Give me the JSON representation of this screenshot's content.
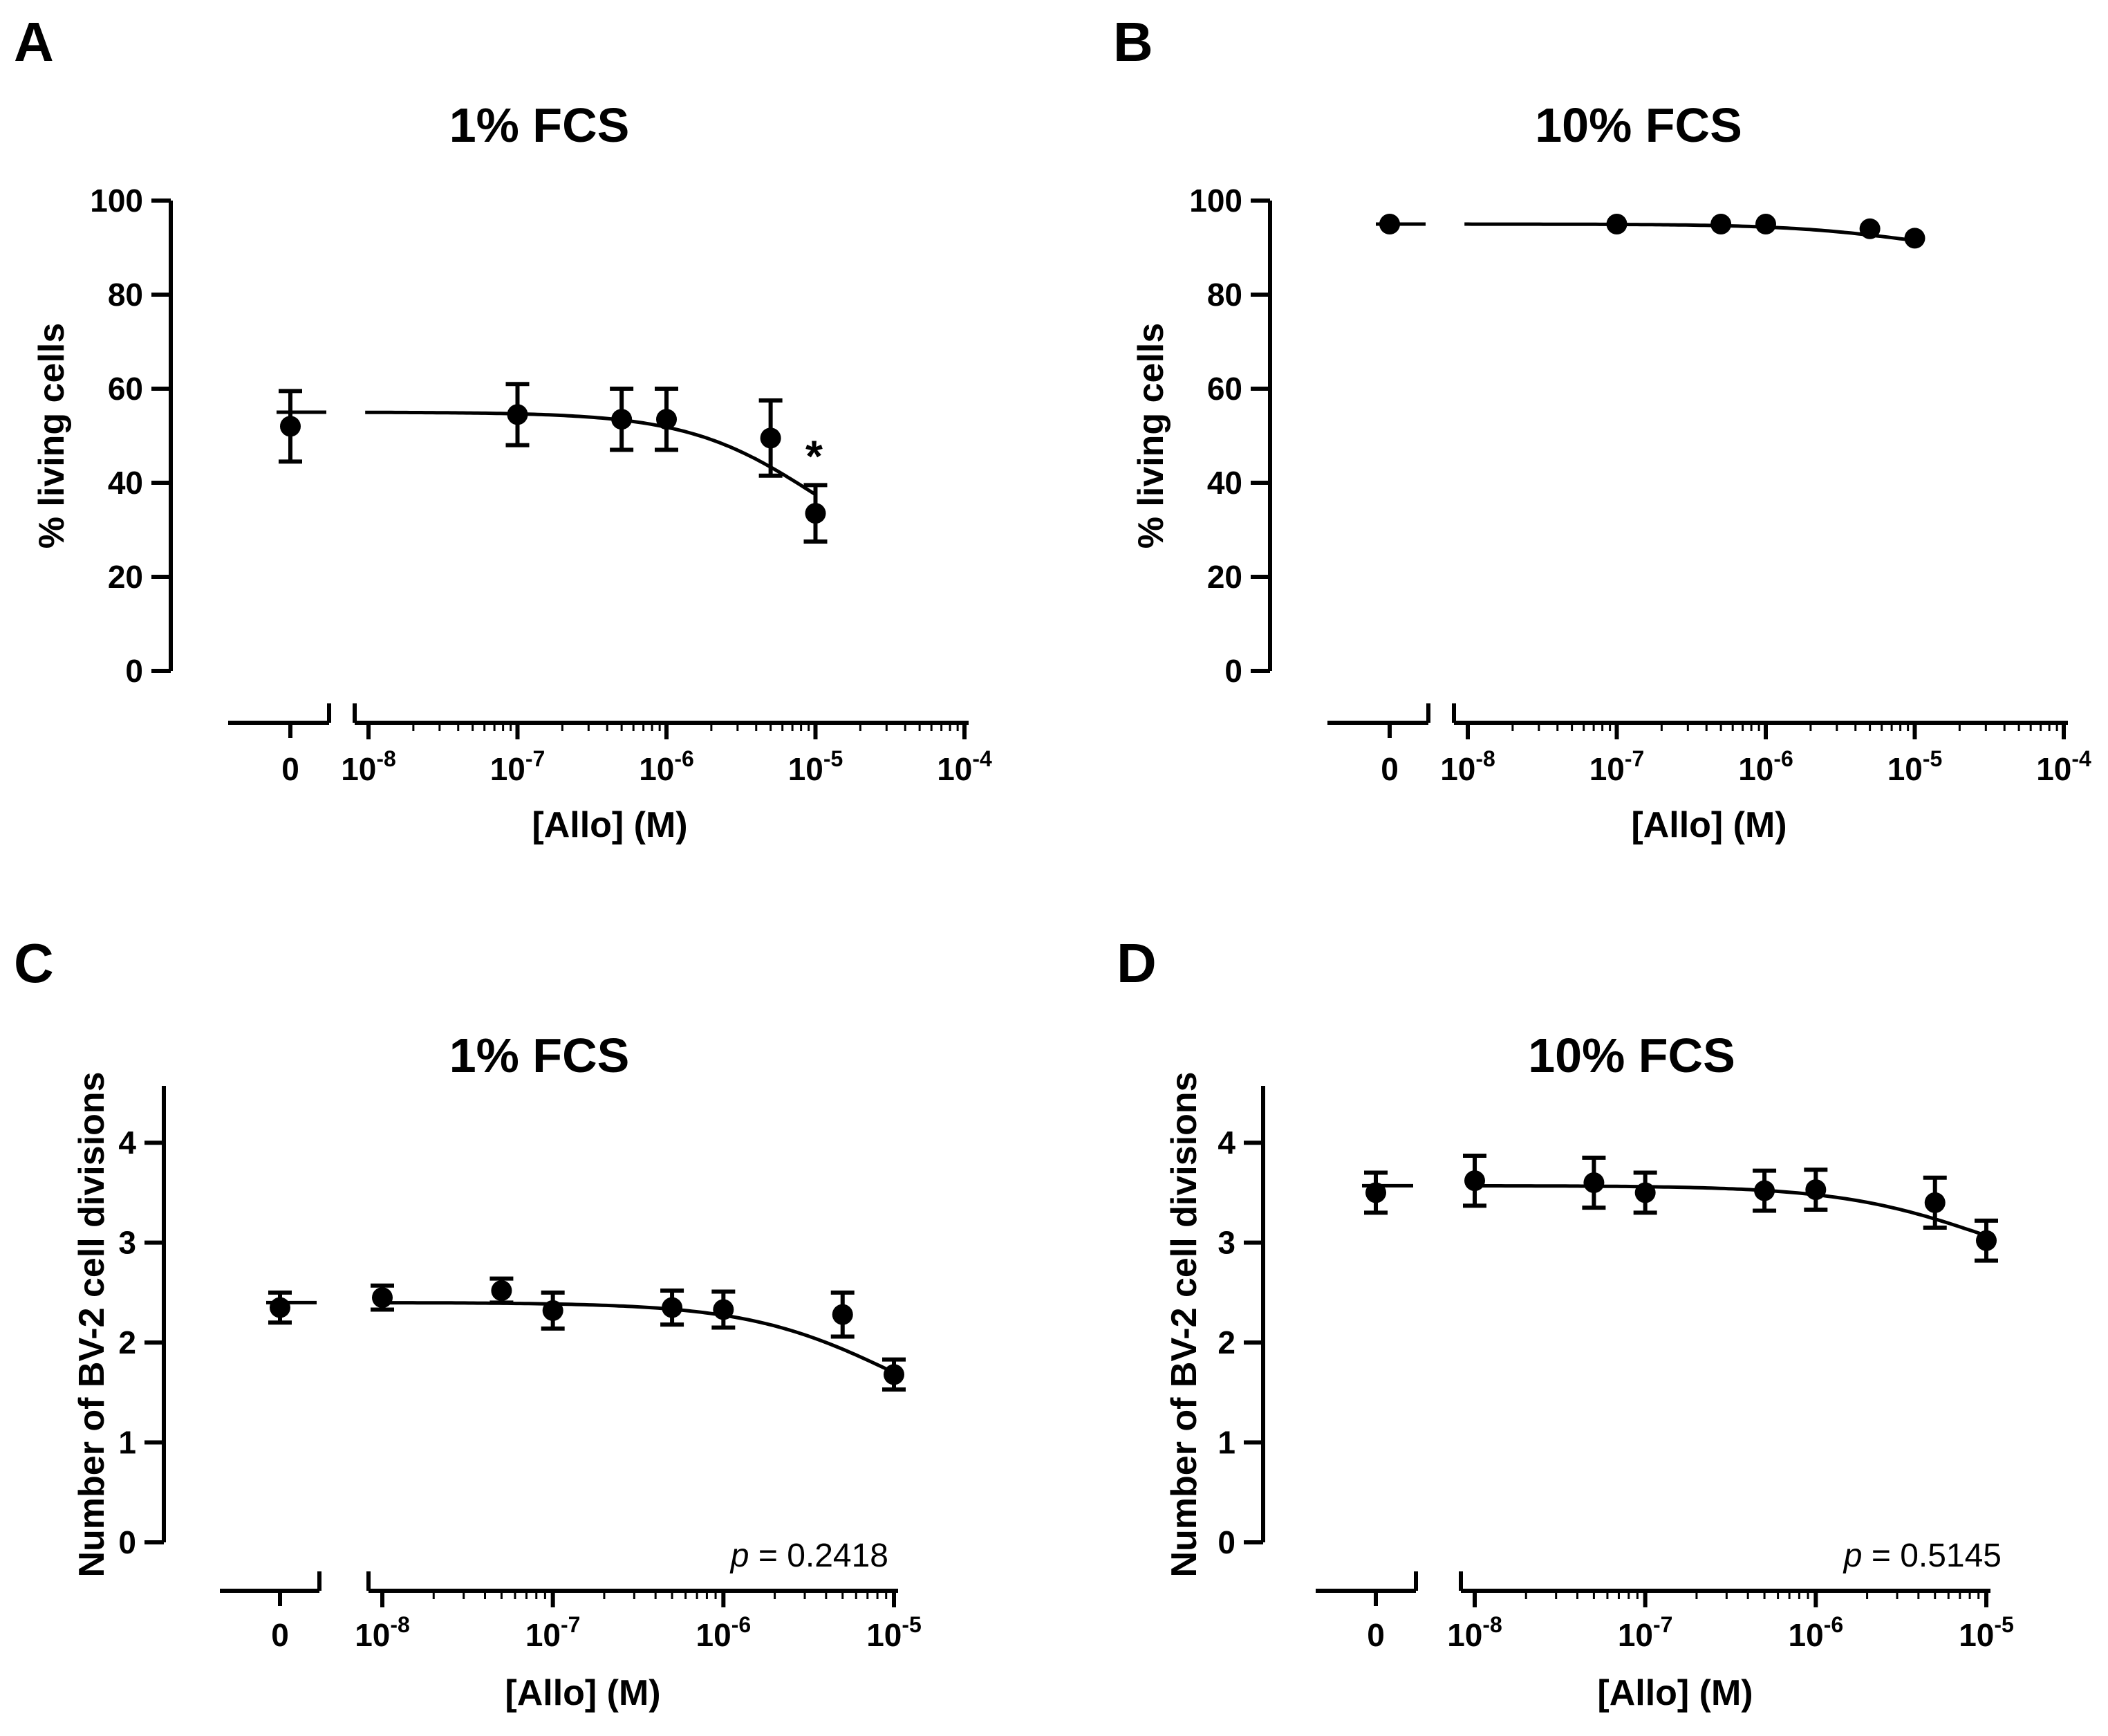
{
  "chart_data": [
    {
      "panel": "A",
      "type": "scatter",
      "title": "1% FCS",
      "ylabel": "% living cells",
      "xlabel": "[Allo] (M)",
      "ylim": [
        0,
        100
      ],
      "yticks": [
        "0",
        "20",
        "40",
        "60",
        "80",
        "100"
      ],
      "control": {
        "label": "0",
        "y": 52,
        "err": 7.5,
        "fit": 55
      },
      "x_decade_range": [
        -8,
        -4
      ],
      "xticks": [
        {
          "base": "10",
          "exp": "-8"
        },
        {
          "base": "10",
          "exp": "-7"
        },
        {
          "base": "10",
          "exp": "-6"
        },
        {
          "base": "10",
          "exp": "-5"
        },
        {
          "base": "10",
          "exp": "-4"
        }
      ],
      "points": [
        {
          "x": 1e-07,
          "y": 54.5,
          "err": 6.5
        },
        {
          "x": 5e-07,
          "y": 53.5,
          "err": 6.5
        },
        {
          "x": 1e-06,
          "y": 53.5,
          "err": 6.5
        },
        {
          "x": 5e-06,
          "y": 49.5,
          "err": 8
        },
        {
          "x": 1e-05,
          "y": 33.5,
          "err": 6
        }
      ],
      "fit": {
        "top": 55,
        "span": 35,
        "logEC50": -5,
        "hill": 1
      },
      "annotation": "*",
      "p_label": "",
      "p_value": ""
    },
    {
      "panel": "B",
      "type": "scatter",
      "title": "10% FCS",
      "ylabel": "% living cells",
      "xlabel": "[Allo] (M)",
      "ylim": [
        0,
        100
      ],
      "yticks": [
        "0",
        "20",
        "40",
        "60",
        "80",
        "100"
      ],
      "control": {
        "label": "0",
        "y": 95,
        "err": 0,
        "fit": 95
      },
      "x_decade_range": [
        -8,
        -4
      ],
      "xticks": [
        {
          "base": "10",
          "exp": "-8"
        },
        {
          "base": "10",
          "exp": "-7"
        },
        {
          "base": "10",
          "exp": "-6"
        },
        {
          "base": "10",
          "exp": "-5"
        },
        {
          "base": "10",
          "exp": "-4"
        }
      ],
      "points": [
        {
          "x": 1e-07,
          "y": 95,
          "err": 0
        },
        {
          "x": 5e-07,
          "y": 95,
          "err": 0
        },
        {
          "x": 1e-06,
          "y": 95,
          "err": 0
        },
        {
          "x": 5e-06,
          "y": 94,
          "err": 0
        },
        {
          "x": 1e-05,
          "y": 92,
          "err": 0
        }
      ],
      "fit": {
        "top": 95,
        "span": 7,
        "logEC50": -5,
        "hill": 1
      },
      "annotation": "",
      "p_label": "",
      "p_value": ""
    },
    {
      "panel": "C",
      "type": "scatter",
      "title": "1% FCS",
      "ylabel": "Number of BV-2 cell divisions",
      "xlabel": "[Allo] (M)",
      "ylim": [
        0,
        4.5
      ],
      "yticks": [
        "0",
        "1",
        "2",
        "3",
        "4"
      ],
      "control": {
        "label": "0",
        "y": 2.35,
        "err": 0.15,
        "fit": 2.4
      },
      "x_decade_range": [
        -8,
        -5
      ],
      "xticks": [
        {
          "base": "10",
          "exp": "-8"
        },
        {
          "base": "10",
          "exp": "-7"
        },
        {
          "base": "10",
          "exp": "-6"
        },
        {
          "base": "10",
          "exp": "-5"
        }
      ],
      "points": [
        {
          "x": 1e-08,
          "y": 2.45,
          "err": 0.12
        },
        {
          "x": 5e-08,
          "y": 2.52,
          "err": 0.12
        },
        {
          "x": 1e-07,
          "y": 2.32,
          "err": 0.18
        },
        {
          "x": 5e-07,
          "y": 2.35,
          "err": 0.17
        },
        {
          "x": 1e-06,
          "y": 2.33,
          "err": 0.18
        },
        {
          "x": 5e-06,
          "y": 2.28,
          "err": 0.22
        },
        {
          "x": 1e-05,
          "y": 1.68,
          "err": 0.15
        }
      ],
      "fit": {
        "top": 2.4,
        "span": 1.4,
        "logEC50": -5,
        "hill": 1
      },
      "annotation": "",
      "p_label": "p",
      "p_value": " = 0.2418"
    },
    {
      "panel": "D",
      "type": "scatter",
      "title": "10% FCS",
      "ylabel": "Number of BV-2 cell divisions",
      "xlabel": "[Allo] (M)",
      "ylim": [
        0,
        4.5
      ],
      "yticks": [
        "0",
        "1",
        "2",
        "3",
        "4"
      ],
      "control": {
        "label": "0",
        "y": 3.5,
        "err": 0.2,
        "fit": 3.57
      },
      "x_decade_range": [
        -8,
        -5
      ],
      "xticks": [
        {
          "base": "10",
          "exp": "-8"
        },
        {
          "base": "10",
          "exp": "-7"
        },
        {
          "base": "10",
          "exp": "-6"
        },
        {
          "base": "10",
          "exp": "-5"
        }
      ],
      "points": [
        {
          "x": 1e-08,
          "y": 3.62,
          "err": 0.25
        },
        {
          "x": 5e-08,
          "y": 3.6,
          "err": 0.25
        },
        {
          "x": 1e-07,
          "y": 3.5,
          "err": 0.2
        },
        {
          "x": 5e-07,
          "y": 3.52,
          "err": 0.2
        },
        {
          "x": 1e-06,
          "y": 3.53,
          "err": 0.2
        },
        {
          "x": 5e-06,
          "y": 3.4,
          "err": 0.25
        },
        {
          "x": 1e-05,
          "y": 3.02,
          "err": 0.2
        }
      ],
      "fit": {
        "top": 3.57,
        "span": 1.0,
        "logEC50": -5,
        "hill": 1
      },
      "annotation": "",
      "p_label": "p",
      "p_value": " = 0.5145"
    }
  ]
}
